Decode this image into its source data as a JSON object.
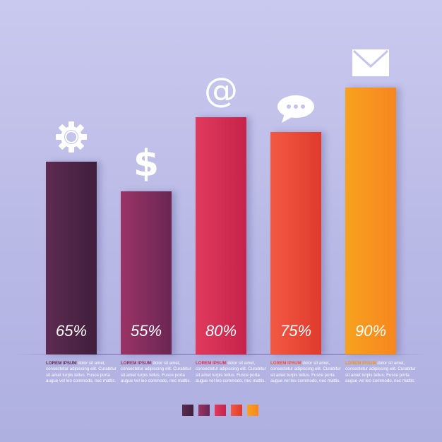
{
  "chart_data": {
    "type": "bar",
    "categories": [
      "65%",
      "55%",
      "80%",
      "75%",
      "90%"
    ],
    "values": [
      65,
      55,
      80,
      75,
      90
    ],
    "value_labels": [
      "65%",
      "55%",
      "80%",
      "75%",
      "90%"
    ],
    "ylim": [
      0,
      100
    ],
    "grid": false,
    "legend": "bottom-center",
    "colors": [
      [
        "#5e2b52",
        "#3f1f3c"
      ],
      [
        "#9a3466",
        "#6a2653"
      ],
      [
        "#e03a5e",
        "#c6234a"
      ],
      [
        "#f25a44",
        "#e03a2c"
      ],
      [
        "#f7a21d",
        "#f7861f"
      ]
    ],
    "icons": [
      "gear-icon",
      "dollar-icon",
      "at-sign-icon",
      "chat-bubble-icon",
      "envelope-icon"
    ],
    "head_colors": [
      "#5e2b52",
      "#8e2e60",
      "#d63052",
      "#ee4e3a",
      "#f58f1e"
    ]
  },
  "descriptions": [
    {
      "head": "LOREM IPSUM",
      "body": " dolor sit amet, consectetur adipiscing elit. Curabitur sit amet turpis tellus. Fusce porta augue vel leo commodo, nec mattis."
    },
    {
      "head": "LOREM IPSUM",
      "body": " dolor sit amet, consectetur adipiscing elit. Curabitur sit amet turpis tellus. Fusce porta augue vel leo commodo, nec mattis."
    },
    {
      "head": "LOREM IPSUM",
      "body": " dolor sit amet, consectetur adipiscing elit. Curabitur sit amet turpis tellus. Fusce porta augue vel leo commodo, nec mattis."
    },
    {
      "head": "LOREM IPSUM",
      "body": " dolor sit amet, consectetur adipiscing elit. Curabitur sit amet turpis tellus. Fusce porta augue vel leo commodo, nec mattis."
    },
    {
      "head": "LOREM IPSUM",
      "body": " dolor sit amet, consectetur adipiscing elit. Curabitur sit amet turpis tellus. Fusce porta augue vel leo commodo, nec mattis."
    }
  ]
}
